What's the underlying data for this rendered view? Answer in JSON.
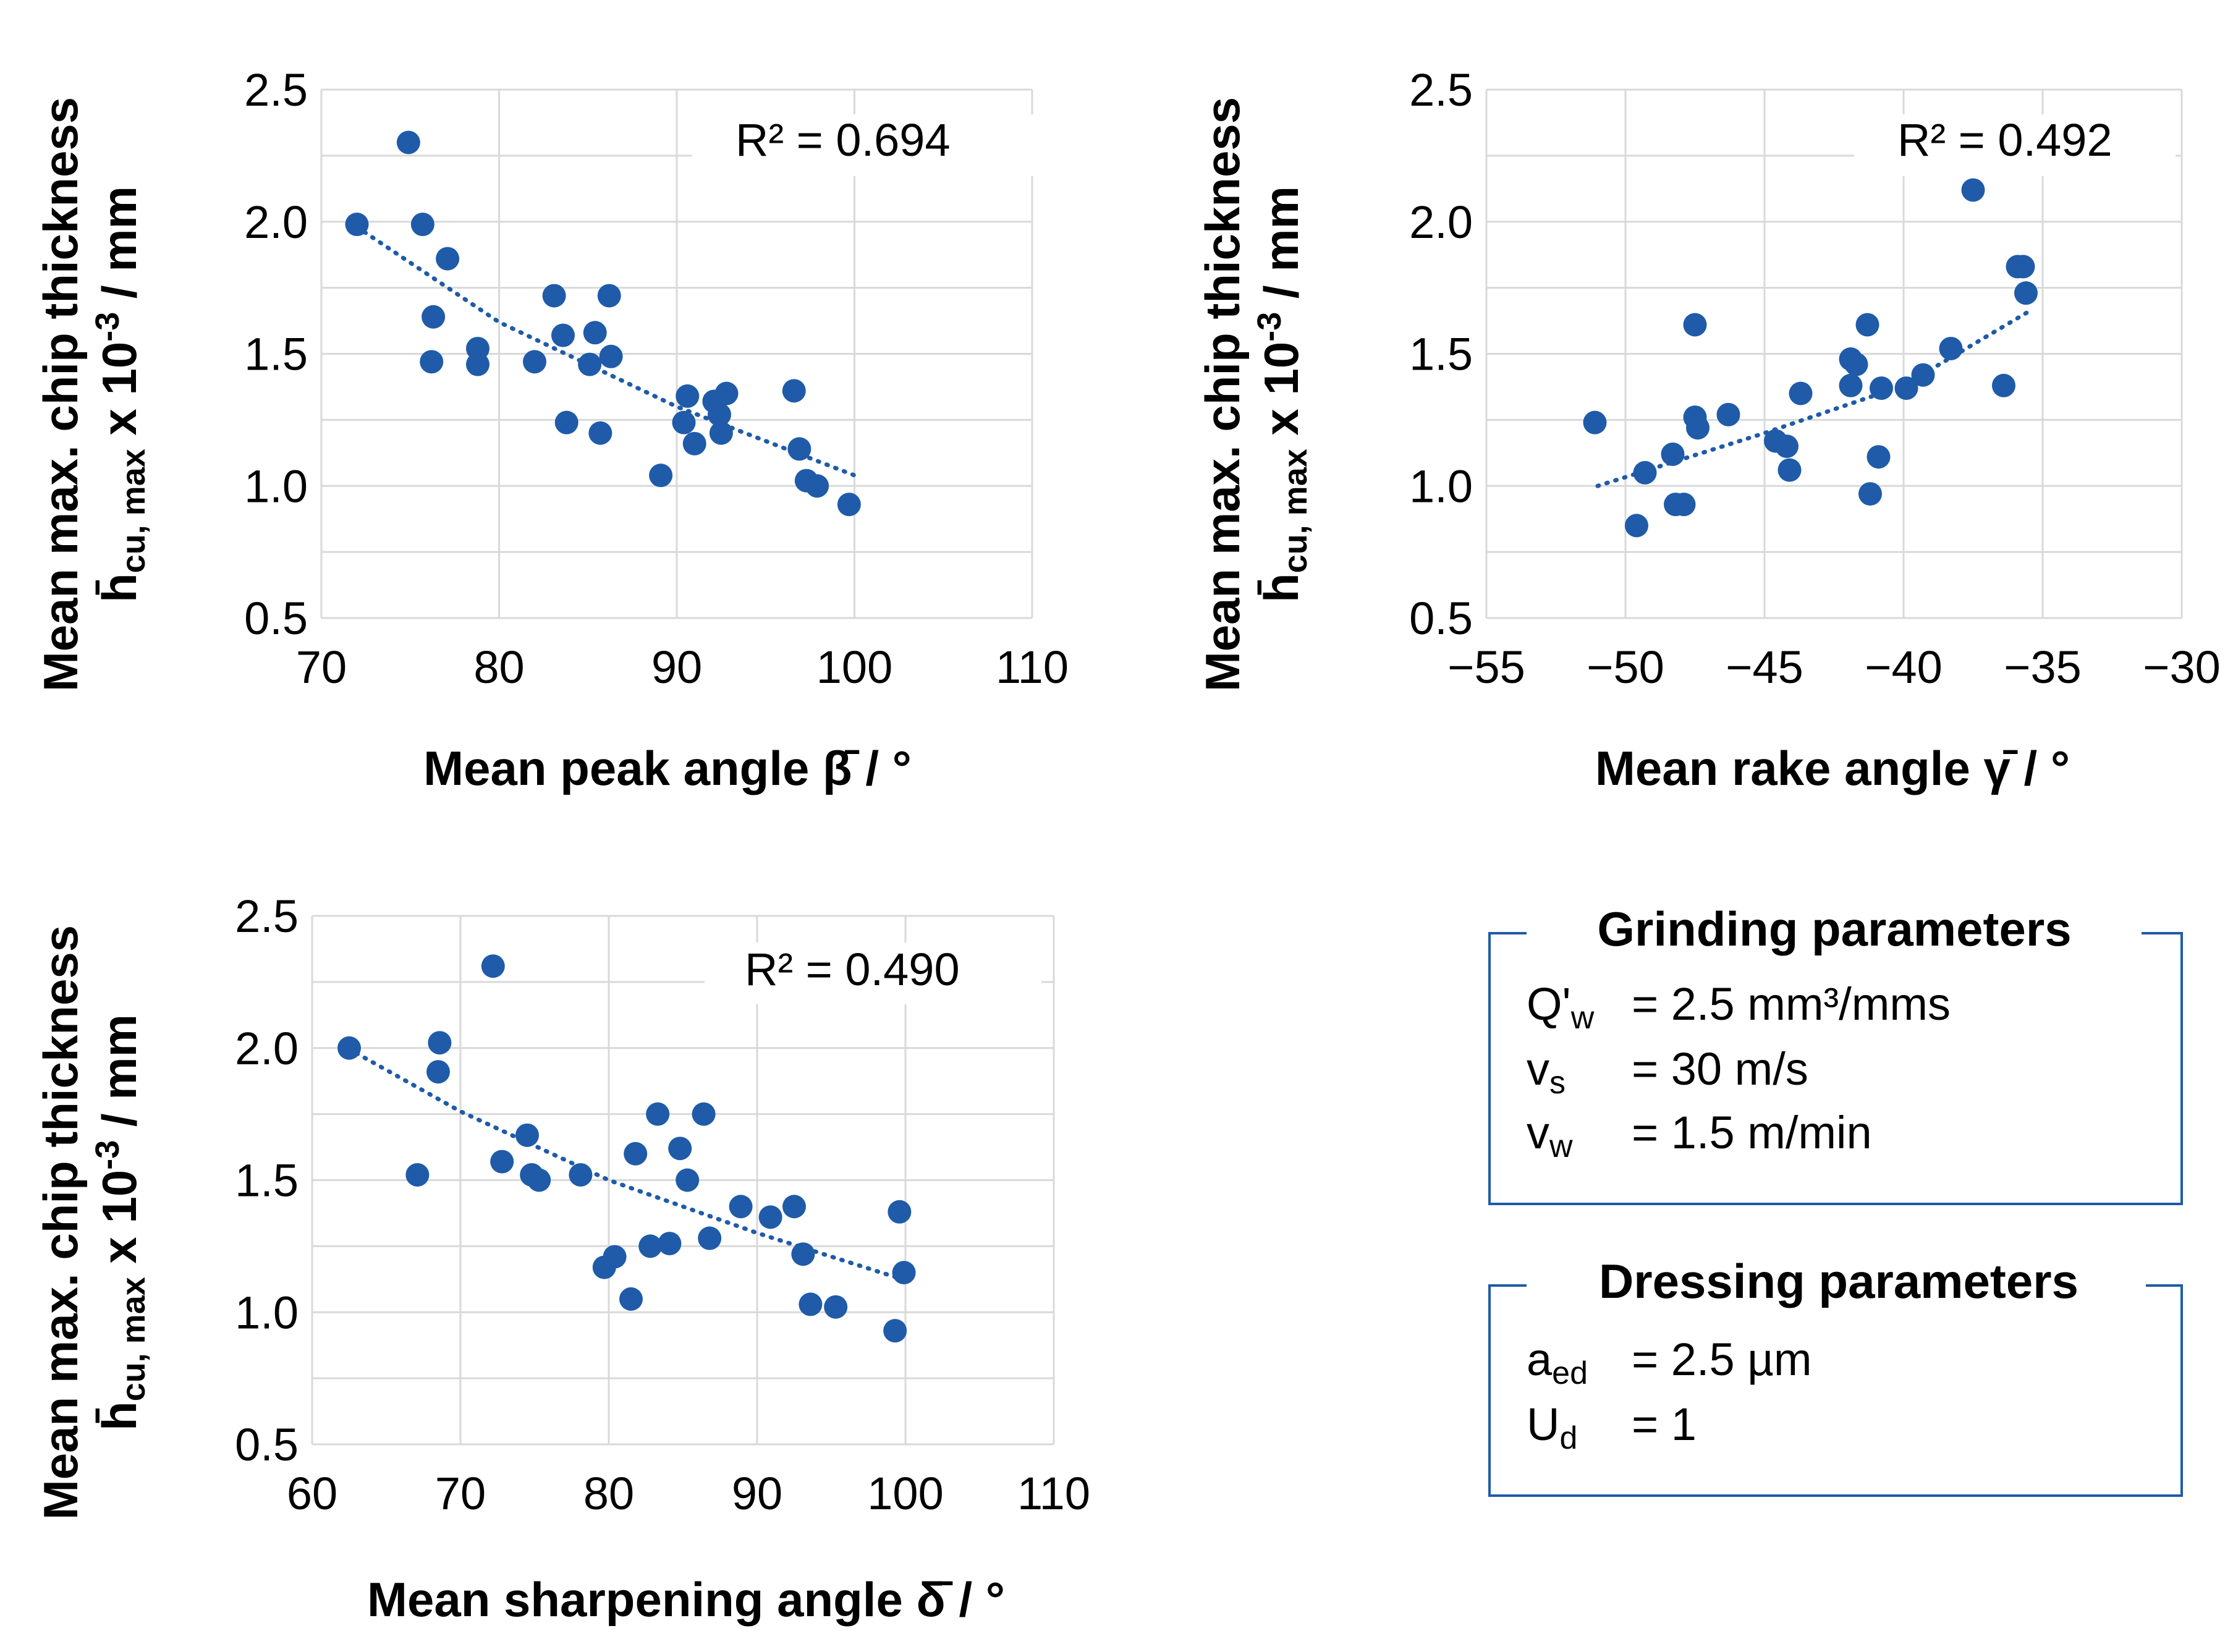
{
  "colors": {
    "marker": "#1f5ba8",
    "trend": "#1f5ba8",
    "grid": "#d9d9d9",
    "box": "#1f5ba8",
    "text": "#000000"
  },
  "chart_data": [
    {
      "type": "scatter",
      "id": "peak",
      "xlabel": "Mean peak angle β̄ / °",
      "ylabel_line1": "Mean max. chip thickness",
      "ylabel_line2_main": "h̄",
      "ylabel_line2_sub": "cu, max",
      "ylabel_line2_x": " x 10",
      "ylabel_line2_sup": "-3",
      "ylabel_line2_unit": " / mm",
      "xlim": [
        70,
        110
      ],
      "ylim": [
        0.5,
        2.5
      ],
      "xticks": [
        70,
        80,
        90,
        100,
        110
      ],
      "xtick_labels": [
        "70",
        "80",
        "90",
        "100",
        "110"
      ],
      "yticks": [
        0.5,
        1.0,
        1.5,
        2.0,
        2.5
      ],
      "ytick_labels": [
        "0.5",
        "1.0",
        "1.5",
        "2.0",
        "2.5"
      ],
      "r2_label": "R² = 0.694",
      "trendline": {
        "x": [
          72,
          80,
          90,
          100
        ],
        "y": [
          1.98,
          1.62,
          1.3,
          1.04
        ]
      },
      "points": [
        [
          72,
          1.99
        ],
        [
          74.9,
          2.3
        ],
        [
          75.7,
          1.99
        ],
        [
          77.1,
          1.86
        ],
        [
          76.3,
          1.64
        ],
        [
          76.2,
          1.47
        ],
        [
          78.8,
          1.52
        ],
        [
          78.8,
          1.46
        ],
        [
          82,
          1.47
        ],
        [
          83.1,
          1.72
        ],
        [
          83.6,
          1.57
        ],
        [
          83.8,
          1.24
        ],
        [
          85.1,
          1.46
        ],
        [
          85.4,
          1.58
        ],
        [
          85.7,
          1.2
        ],
        [
          86.2,
          1.72
        ],
        [
          86.3,
          1.49
        ],
        [
          89.1,
          1.04
        ],
        [
          90.4,
          1.24
        ],
        [
          90.6,
          1.34
        ],
        [
          91,
          1.16
        ],
        [
          92.1,
          1.32
        ],
        [
          92.4,
          1.27
        ],
        [
          92.5,
          1.2
        ],
        [
          92.8,
          1.35
        ],
        [
          96.6,
          1.36
        ],
        [
          96.9,
          1.14
        ],
        [
          97.3,
          1.02
        ],
        [
          97.9,
          1.0
        ],
        [
          99.7,
          0.93
        ]
      ]
    },
    {
      "type": "scatter",
      "id": "rake",
      "xlabel": "Mean rake angle γ̄ / °",
      "ylabel_line1": "Mean max. chip thickness",
      "ylabel_line2_main": "h̄",
      "ylabel_line2_sub": "cu, max",
      "ylabel_line2_x": " x 10",
      "ylabel_line2_sup": "-3",
      "ylabel_line2_unit": " / mm",
      "xlim": [
        -55,
        -30
      ],
      "ylim": [
        0.5,
        2.5
      ],
      "xticks": [
        -55,
        -50,
        -45,
        -40,
        -35,
        -30
      ],
      "xtick_labels": [
        "-55",
        "-50",
        "-45",
        "-40",
        "-35",
        "-30"
      ],
      "yticks": [
        0.5,
        1.0,
        1.5,
        2.0,
        2.5
      ],
      "ytick_labels": [
        "0.5",
        "1.0",
        "1.5",
        "2.0",
        "2.5"
      ],
      "r2_label": "R² = 0.492",
      "trendline": {
        "x": [
          -51,
          -45,
          -40,
          -35.5
        ],
        "y": [
          1.0,
          1.2,
          1.38,
          1.66
        ]
      },
      "points": [
        [
          -51.1,
          1.24
        ],
        [
          -49.6,
          0.85
        ],
        [
          -49.3,
          1.05
        ],
        [
          -48.3,
          1.12
        ],
        [
          -48.2,
          0.93
        ],
        [
          -47.9,
          0.93
        ],
        [
          -47.5,
          1.61
        ],
        [
          -47.5,
          1.26
        ],
        [
          -47.4,
          1.22
        ],
        [
          -46.3,
          1.27
        ],
        [
          -44.6,
          1.17
        ],
        [
          -44.2,
          1.15
        ],
        [
          -44.1,
          1.06
        ],
        [
          -43.7,
          1.35
        ],
        [
          -41.9,
          1.48
        ],
        [
          -41.9,
          1.38
        ],
        [
          -41.7,
          1.46
        ],
        [
          -41.3,
          1.61
        ],
        [
          -41.2,
          0.97
        ],
        [
          -40.9,
          1.11
        ],
        [
          -40.8,
          1.37
        ],
        [
          -39.9,
          1.37
        ],
        [
          -39.3,
          1.42
        ],
        [
          -38.3,
          1.52
        ],
        [
          -37.5,
          2.12
        ],
        [
          -36.4,
          1.38
        ],
        [
          -35.9,
          1.83
        ],
        [
          -35.7,
          1.83
        ],
        [
          -35.6,
          1.73
        ]
      ]
    },
    {
      "type": "scatter",
      "id": "sharpening",
      "xlabel": "Mean sharpening angle δ̄ / °",
      "ylabel_line1": "Mean max. chip thickness",
      "ylabel_line2_main": "h̄",
      "ylabel_line2_sub": "cu, max",
      "ylabel_line2_x": " x 10",
      "ylabel_line2_sup": "-3",
      "ylabel_line2_unit": " / mm",
      "xlim": [
        60,
        110
      ],
      "ylim": [
        0.5,
        2.5
      ],
      "xticks": [
        60,
        70,
        80,
        90,
        100,
        110
      ],
      "xtick_labels": [
        "60",
        "70",
        "80",
        "90",
        "100",
        "110"
      ],
      "yticks": [
        0.5,
        1.0,
        1.5,
        2.0,
        2.5
      ],
      "ytick_labels": [
        "0.5",
        "1.0",
        "1.5",
        "2.0",
        "2.5"
      ],
      "r2_label": "R² = 0.490",
      "trendline": {
        "x": [
          63,
          70,
          80,
          90,
          99.5
        ],
        "y": [
          1.98,
          1.76,
          1.5,
          1.3,
          1.13
        ]
      },
      "points": [
        [
          62.5,
          2.0
        ],
        [
          67.1,
          1.52
        ],
        [
          68.6,
          2.02
        ],
        [
          68.5,
          1.91
        ],
        [
          72.2,
          2.31
        ],
        [
          72.8,
          1.57
        ],
        [
          74.5,
          1.67
        ],
        [
          74.8,
          1.52
        ],
        [
          75.3,
          1.5
        ],
        [
          78.1,
          1.52
        ],
        [
          79.7,
          1.17
        ],
        [
          80.4,
          1.21
        ],
        [
          81.5,
          1.05
        ],
        [
          81.8,
          1.6
        ],
        [
          82.8,
          1.25
        ],
        [
          83.3,
          1.75
        ],
        [
          84.1,
          1.26
        ],
        [
          84.8,
          1.62
        ],
        [
          85.3,
          1.5
        ],
        [
          86.4,
          1.75
        ],
        [
          86.8,
          1.28
        ],
        [
          88.9,
          1.4
        ],
        [
          90.9,
          1.36
        ],
        [
          92.5,
          1.4
        ],
        [
          93.1,
          1.22
        ],
        [
          93.6,
          1.03
        ],
        [
          95.3,
          1.02
        ],
        [
          99.3,
          0.93
        ],
        [
          99.6,
          1.38
        ],
        [
          99.9,
          1.15
        ]
      ]
    }
  ],
  "grinding_box": {
    "title": "Grinding parameters",
    "rows": [
      {
        "sym": "Q'",
        "sub": "w",
        "value": "= 2.5 mm³/mms"
      },
      {
        "sym": "v",
        "sub": "s",
        "value": "= 30 m/s"
      },
      {
        "sym": "v",
        "sub": "w",
        "value": "= 1.5 m/min"
      }
    ]
  },
  "dressing_box": {
    "title": "Dressing parameters",
    "rows": [
      {
        "sym": "a",
        "sub": "ed",
        "value": "= 2.5 µm"
      },
      {
        "sym": "U",
        "sub": "d",
        "value": "= 1"
      }
    ]
  }
}
